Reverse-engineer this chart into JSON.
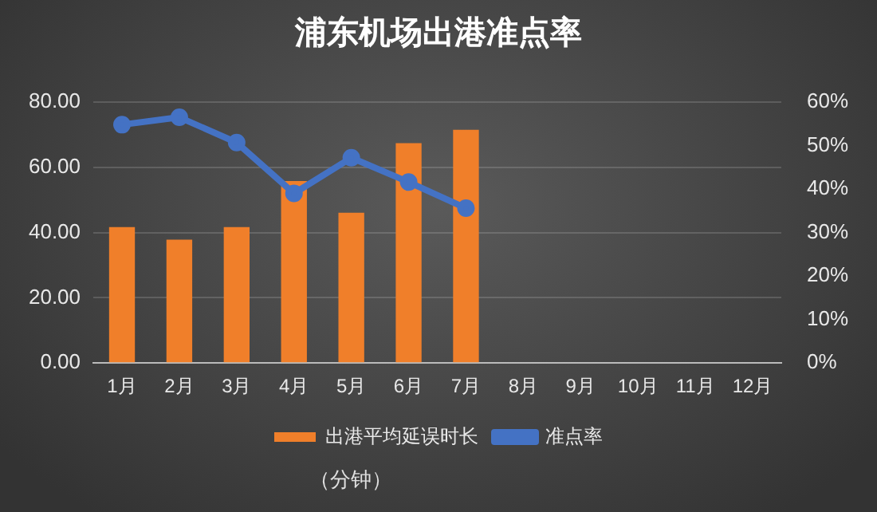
{
  "chart_data": {
    "type": "bar",
    "title": "浦东机场出港准点率",
    "categories": [
      "1月",
      "2月",
      "3月",
      "4月",
      "5月",
      "6月",
      "7月",
      "8月",
      "9月",
      "10月",
      "11月",
      "12月"
    ],
    "series": [
      {
        "name": "出港平均延误时长",
        "color": "#f07f2a",
        "values": [
          41.7,
          37.8,
          41.7,
          55.8,
          46.1,
          67.4,
          71.5,
          null,
          null,
          null,
          null,
          null
        ]
      },
      {
        "name": "准点率",
        "type": "line",
        "axis": "y2",
        "color": "#4472c4",
        "values": [
          54.8,
          56.5,
          50.7,
          39.0,
          47.2,
          41.6,
          35.6,
          null,
          null,
          null,
          null,
          null
        ]
      }
    ],
    "ylim": [
      0,
      80
    ],
    "yticks": [
      {
        "value": 0,
        "label": "0.00"
      },
      {
        "value": 20,
        "label": "20.00"
      },
      {
        "value": 40,
        "label": "40.00"
      },
      {
        "value": 60,
        "label": "60.00"
      },
      {
        "value": 80,
        "label": "80.00"
      }
    ],
    "y2lim": [
      0,
      60
    ],
    "y2ticks": [
      {
        "value": 0,
        "label": "0%"
      },
      {
        "value": 10,
        "label": "10%"
      },
      {
        "value": 20,
        "label": "20%"
      },
      {
        "value": 30,
        "label": "30%"
      },
      {
        "value": 40,
        "label": "40%"
      },
      {
        "value": 50,
        "label": "50%"
      },
      {
        "value": 60,
        "label": "60%"
      }
    ],
    "grid": "y",
    "legend": "bottom",
    "marker": "circle",
    "line_style": "solid",
    "annotations": [
      "（分钟）"
    ]
  }
}
